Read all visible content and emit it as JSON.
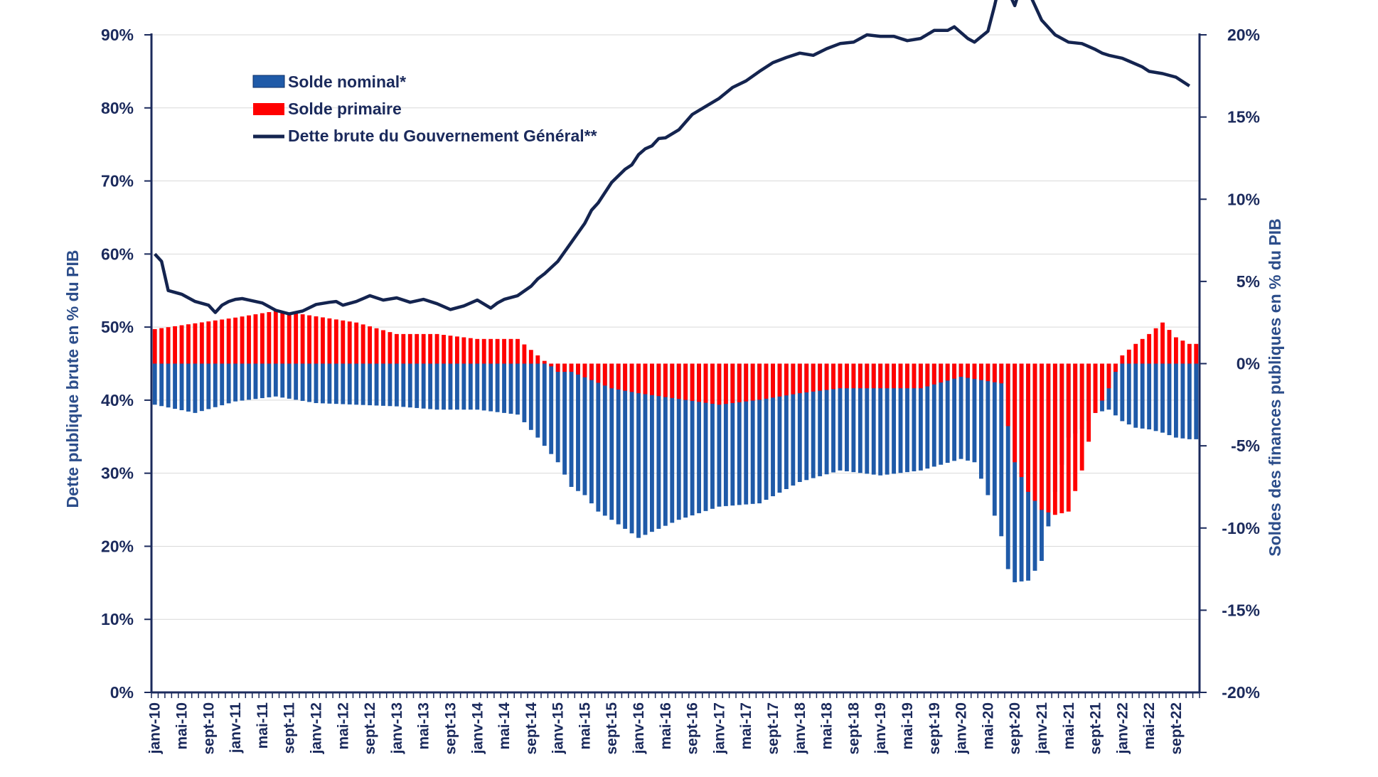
{
  "chart_data": {
    "type": "bar",
    "title": "",
    "y_left": {
      "label": "Dette publique brute en % du PIB",
      "ticks": [
        "0%",
        "10%",
        "20%",
        "30%",
        "40%",
        "50%",
        "60%",
        "70%",
        "80%",
        "90%"
      ],
      "range": [
        0,
        90
      ]
    },
    "y_right": {
      "label": "Soldes des finances publiques en % du PIB",
      "ticks": [
        "-20%",
        "-15%",
        "-10%",
        "-5%",
        "0%",
        "5%",
        "10%",
        "15%",
        "20%"
      ],
      "range": [
        -20,
        20
      ]
    },
    "x_labels": [
      "janv-10",
      "mai-10",
      "sept-10",
      "janv-11",
      "mai-11",
      "sept-11",
      "janv-12",
      "mai-12",
      "sept-12",
      "janv-13",
      "mai-13",
      "sept-13",
      "janv-14",
      "mai-14",
      "sept-14",
      "janv-15",
      "mai-15",
      "sept-15",
      "janv-16",
      "mai-16",
      "sept-16",
      "janv-17",
      "mai-17",
      "sept-17",
      "janv-18",
      "mai-18",
      "sept-18",
      "janv-19",
      "mai-19",
      "sept-19",
      "janv-20",
      "mai-20",
      "sept-20",
      "janv-21",
      "mai-21",
      "sept-21",
      "janv-22",
      "mai-22",
      "sept-22"
    ],
    "legend": {
      "placement": "top-left",
      "items": [
        {
          "label": "Solde nominal*",
          "kind": "bar",
          "color": "#1f5aa8"
        },
        {
          "label": "Solde primaire",
          "kind": "bar",
          "color": "#ff0000"
        },
        {
          "label": "Dette brute du Gouvernement Général**",
          "kind": "line",
          "color": "#14244f"
        }
      ]
    },
    "grid": "horizontal",
    "colors": {
      "nominal": "#1f5aa8",
      "primaire": "#ff0000",
      "dette": "#14244f",
      "axis": "#1b2a5c"
    },
    "series": [
      {
        "name": "Dette brute du Gouvernement Général**",
        "axis": "left",
        "type": "line",
        "x_month_index": [
          0,
          1,
          2,
          4,
          6,
          8,
          9,
          10,
          11,
          12,
          13,
          14,
          16,
          18,
          20,
          22,
          24,
          26,
          27,
          28,
          30,
          32,
          34,
          36,
          38,
          40,
          42,
          44,
          46,
          48,
          50,
          51,
          52,
          54,
          56,
          57,
          58,
          60,
          62,
          64,
          65,
          66,
          68,
          70,
          71,
          72,
          73,
          74,
          75,
          76,
          78,
          80,
          82,
          84,
          86,
          88,
          90,
          92,
          94,
          96,
          98,
          100,
          102,
          104,
          106,
          108,
          110,
          112,
          114,
          116,
          118,
          119,
          120,
          121,
          122,
          124,
          125,
          126,
          128,
          129,
          130,
          132,
          134,
          136,
          138,
          140,
          141,
          142,
          144,
          145,
          146,
          147,
          148,
          150,
          152,
          154
        ],
        "values": [
          60,
          59,
          55,
          54.5,
          53.5,
          53,
          52,
          53,
          53.5,
          53.8,
          53.9,
          53.7,
          53.3,
          52.3,
          51.8,
          52.2,
          53.1,
          53.4,
          53.5,
          53,
          53.5,
          54.3,
          53.7,
          54,
          53.4,
          53.8,
          53.2,
          52.4,
          52.9,
          53.7,
          52.6,
          53.3,
          53.8,
          54.3,
          55.6,
          56.6,
          57.3,
          59,
          61.6,
          64.2,
          66,
          67,
          69.8,
          71.6,
          72.2,
          73.6,
          74.4,
          74.8,
          75.8,
          75.9,
          77,
          79.1,
          80.2,
          81.3,
          82.8,
          83.7,
          85,
          86.2,
          86.9,
          87.5,
          87.2,
          88.1,
          88.8,
          89,
          90,
          89.8,
          89.8,
          89.2,
          89.5,
          90.6,
          90.6,
          91.1,
          90.3,
          89.5,
          89,
          90.5,
          94,
          98,
          94,
          97,
          96,
          92,
          90,
          89,
          88.8,
          88,
          87.5,
          87.2,
          86.8,
          86.4,
          86,
          85.6,
          85,
          84.7,
          84.2,
          83
        ]
      },
      {
        "name": "Solde primaire",
        "axis": "right",
        "type": "bar",
        "x_month_index": [
          0,
          12,
          18,
          22,
          30,
          36,
          42,
          48,
          54,
          57,
          60,
          62,
          68,
          72,
          84,
          90,
          96,
          102,
          108,
          114,
          120,
          126,
          127,
          128,
          130,
          132,
          134,
          136,
          138,
          140,
          142,
          144,
          146,
          148,
          150,
          152,
          154
        ],
        "values": [
          2.1,
          2.8,
          3.2,
          3,
          2.5,
          1.8,
          1.8,
          1.5,
          1.5,
          0.5,
          -0.5,
          -0.5,
          -1.5,
          -1.8,
          -2.5,
          -2.2,
          -1.8,
          -1.5,
          -1.5,
          -1.5,
          -0.8,
          -1.2,
          -3.8,
          -6,
          -7.8,
          -8.9,
          -9.2,
          -9,
          -6.5,
          -3,
          -1.5,
          0.5,
          1.2,
          1.8,
          2.5,
          1.6,
          1.2
        ]
      },
      {
        "name": "Solde nominal*",
        "axis": "right",
        "type": "bar",
        "x_month_index": [
          0,
          6,
          12,
          18,
          24,
          30,
          36,
          42,
          48,
          54,
          57,
          60,
          62,
          64,
          66,
          68,
          72,
          78,
          84,
          90,
          96,
          102,
          108,
          114,
          120,
          122,
          124,
          126,
          127,
          128,
          130,
          132,
          134,
          136,
          138,
          140,
          142,
          144,
          146,
          148,
          150,
          152,
          154
        ],
        "values": [
          -2.5,
          -3,
          -2.3,
          -2,
          -2.4,
          -2.5,
          -2.6,
          -2.8,
          -2.8,
          -3.1,
          -4.5,
          -6,
          -7.5,
          -8,
          -9,
          -9.5,
          -10.6,
          -9.5,
          -8.7,
          -8.5,
          -7.2,
          -6.5,
          -6.8,
          -6.5,
          -5.8,
          -6,
          -8,
          -10.5,
          -12.5,
          -13.3,
          -13.2,
          -12,
          -7.8,
          -4.5,
          -4,
          -3,
          -2.8,
          -3.5,
          -3.9,
          -4,
          -4.2,
          -4.5,
          -4.6
        ]
      }
    ]
  }
}
